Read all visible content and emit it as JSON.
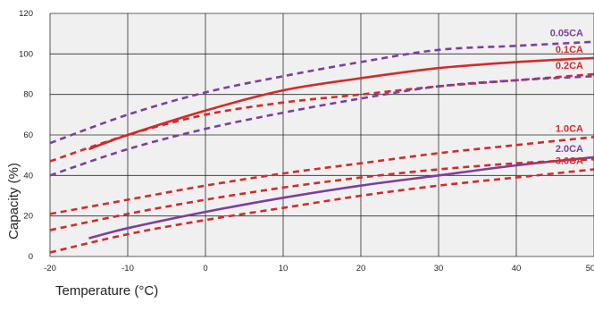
{
  "chart_data": {
    "type": "line",
    "title": "",
    "xlabel": "Temperature (°C)",
    "ylabel": "Capacity (%)",
    "xlim": [
      -20,
      50
    ],
    "ylim": [
      0,
      120
    ],
    "grid": true,
    "x_ticks": [
      "-20",
      "-10",
      "0",
      "10",
      "20",
      "30",
      "40",
      "50"
    ],
    "y_ticks": [
      "0",
      "20",
      "40",
      "60",
      "80",
      "100",
      "120"
    ],
    "legend": "inline-right",
    "series": [
      {
        "name": "0.05CA",
        "color": "#7b3fa0",
        "dash": true,
        "points": [
          [
            -20,
            56
          ],
          [
            -10,
            70
          ],
          [
            0,
            81
          ],
          [
            10,
            89
          ],
          [
            20,
            96
          ],
          [
            30,
            102
          ],
          [
            40,
            104
          ],
          [
            50,
            106
          ]
        ]
      },
      {
        "name": "0.1CA",
        "color": "#d42a2a",
        "dash": false,
        "points": [
          [
            -15,
            53
          ],
          [
            -10,
            60
          ],
          [
            0,
            72
          ],
          [
            10,
            82
          ],
          [
            20,
            88
          ],
          [
            30,
            93
          ],
          [
            40,
            96
          ],
          [
            50,
            98
          ]
        ]
      },
      {
        "name": "0.2CA",
        "color": "#d42a2a",
        "dash": true,
        "points": [
          [
            -20,
            47
          ],
          [
            -10,
            60
          ],
          [
            0,
            70
          ],
          [
            10,
            76
          ],
          [
            20,
            80
          ],
          [
            30,
            84
          ],
          [
            40,
            87
          ],
          [
            50,
            90
          ]
        ]
      },
      {
        "name": "",
        "color": "#7b3fa0",
        "dash": true,
        "points": [
          [
            -20,
            40
          ],
          [
            -10,
            53
          ],
          [
            0,
            63
          ],
          [
            10,
            71
          ],
          [
            20,
            78
          ],
          [
            30,
            84
          ],
          [
            40,
            87
          ],
          [
            50,
            89
          ]
        ]
      },
      {
        "name": "1.0CA",
        "color": "#d42a2a",
        "dash": true,
        "points": [
          [
            -20,
            21
          ],
          [
            -10,
            28
          ],
          [
            0,
            35
          ],
          [
            10,
            41
          ],
          [
            20,
            46
          ],
          [
            30,
            51
          ],
          [
            40,
            55
          ],
          [
            50,
            59
          ]
        ]
      },
      {
        "name": "2.0CA",
        "color": "#7b3fa0",
        "dash": false,
        "points": [
          [
            -15,
            9
          ],
          [
            -10,
            14
          ],
          [
            0,
            22
          ],
          [
            10,
            29
          ],
          [
            20,
            35
          ],
          [
            30,
            40
          ],
          [
            40,
            45
          ],
          [
            50,
            49
          ]
        ]
      },
      {
        "name": "",
        "color": "#d42a2a",
        "dash": true,
        "points": [
          [
            -20,
            13
          ],
          [
            -10,
            21
          ],
          [
            0,
            28
          ],
          [
            10,
            34
          ],
          [
            20,
            39
          ],
          [
            30,
            43
          ],
          [
            40,
            46
          ],
          [
            50,
            48
          ]
        ]
      },
      {
        "name": "3.0CA",
        "color": "#d42a2a",
        "dash": true,
        "points": [
          [
            -20,
            2
          ],
          [
            -10,
            11
          ],
          [
            0,
            18
          ],
          [
            10,
            24
          ],
          [
            20,
            30
          ],
          [
            30,
            35
          ],
          [
            40,
            39
          ],
          [
            50,
            43
          ]
        ]
      }
    ]
  }
}
